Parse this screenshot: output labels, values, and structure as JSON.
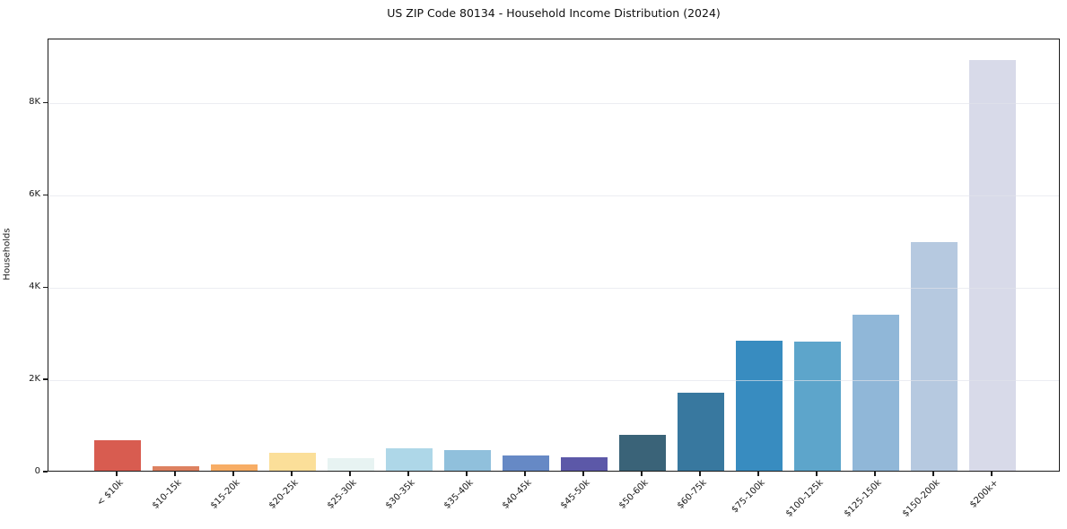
{
  "chart_data": {
    "type": "bar",
    "title": "US ZIP Code 80134 - Household Income Distribution (2024)",
    "xlabel": "",
    "ylabel": "Households",
    "categories": [
      "< $10k",
      "$10-15k",
      "$15-20k",
      "$20-25k",
      "$25-30k",
      "$30-35k",
      "$35-40k",
      "$40-45k",
      "$45-50k",
      "$50-60k",
      "$60-75k",
      "$75-100k",
      "$100-125k",
      "$125-150k",
      "$150-200k",
      "$200k+"
    ],
    "values": [
      660,
      90,
      140,
      380,
      270,
      480,
      440,
      340,
      300,
      780,
      1690,
      2810,
      2800,
      3380,
      4960,
      8900
    ],
    "bar_colors": [
      "#d85c50",
      "#dd8160",
      "#f7ad65",
      "#fbdf99",
      "#e7f3f2",
      "#aed7e8",
      "#90c0dc",
      "#6689c5",
      "#5c58a8",
      "#3a6378",
      "#38789f",
      "#388cc0",
      "#5da5cb",
      "#90b7d8",
      "#b6c9e0",
      "#d8dae9"
    ],
    "yticks": [
      {
        "value": 0,
        "label": "0"
      },
      {
        "value": 2000,
        "label": "2K"
      },
      {
        "value": 4000,
        "label": "4K"
      },
      {
        "value": 6000,
        "label": "6K"
      },
      {
        "value": 8000,
        "label": "8K"
      }
    ],
    "ylim": [
      0,
      9390
    ],
    "grid": "horizontal",
    "legend": "none",
    "background": "#ffffff",
    "axis_color": "#1a1a1a",
    "grid_color": "#e6e7ee"
  }
}
